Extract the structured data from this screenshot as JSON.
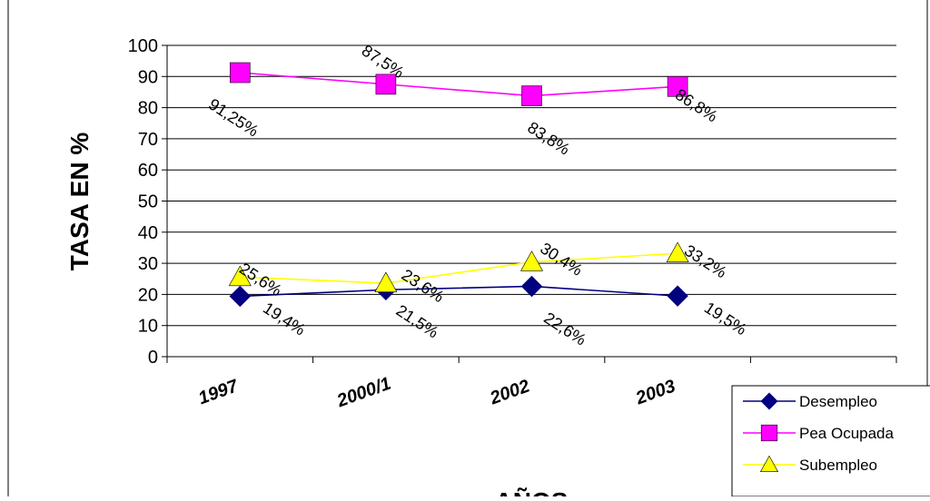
{
  "chart_data": {
    "type": "line",
    "categories": [
      "1997",
      "2000/1",
      "2002",
      "2003"
    ],
    "ylim": [
      0,
      100
    ],
    "yticks": [
      0,
      10,
      20,
      30,
      40,
      50,
      60,
      70,
      80,
      90,
      100
    ],
    "xlabel": "AÑOS",
    "ylabel": "TASA EN %",
    "grid": true,
    "legend": "bottom-right",
    "series": [
      {
        "name": "Desempleo",
        "values": [
          19.4,
          21.5,
          22.6,
          19.5
        ],
        "labels": [
          "19,4%",
          "21,5%",
          "22,6%",
          "19,5%"
        ],
        "color": "#000080",
        "marker": "diamond"
      },
      {
        "name": "Pea Ocupada",
        "values": [
          91.25,
          87.5,
          83.8,
          86.8
        ],
        "labels": [
          "91,25%",
          "87,5%",
          "83,8%",
          "86,8%"
        ],
        "color": "#FF00FF",
        "marker": "square"
      },
      {
        "name": "Subempleo",
        "values": [
          25.6,
          23.6,
          30.4,
          33.2
        ],
        "labels": [
          "25,6%",
          "23,6%",
          "30,4%",
          "33,2%"
        ],
        "color": "#FFFF00",
        "marker": "triangle"
      }
    ]
  }
}
